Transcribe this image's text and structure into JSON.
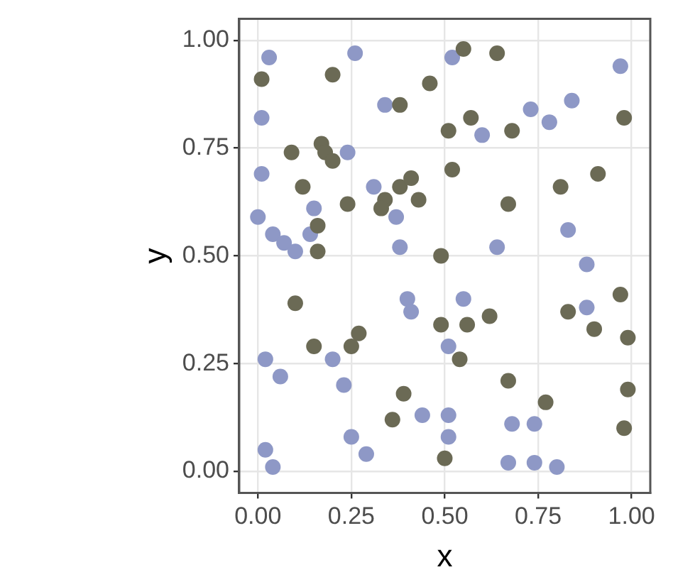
{
  "chart_data": {
    "type": "scatter",
    "xlabel": "x",
    "ylabel": "y",
    "xlim": [
      -0.05,
      1.05
    ],
    "ylim": [
      -0.05,
      1.05
    ],
    "xticks": [
      {
        "value": 0,
        "label": "0.00"
      },
      {
        "value": 0.25,
        "label": "0.25"
      },
      {
        "value": 0.5,
        "label": "0.50"
      },
      {
        "value": 0.75,
        "label": "0.75"
      },
      {
        "value": 1,
        "label": "1.00"
      }
    ],
    "yticks": [
      {
        "value": 0,
        "label": "0.00"
      },
      {
        "value": 0.25,
        "label": "0.25"
      },
      {
        "value": 0.5,
        "label": "0.50"
      },
      {
        "value": 0.75,
        "label": "0.75"
      },
      {
        "value": 1,
        "label": "1.00"
      }
    ],
    "grid": true,
    "legend": false,
    "marker": "circle",
    "series": [
      {
        "color": "#6b6a55",
        "x": [
          0.01,
          0.2,
          0.46,
          0.38,
          0.09,
          0.17,
          0.18,
          0.2,
          0.51,
          0.12,
          0.24,
          0.34,
          0.38,
          0.41,
          0.43,
          0.33,
          0.16,
          0.49,
          0.55,
          0.64,
          0.98,
          0.57,
          0.68,
          0.52,
          0.81,
          0.91,
          0.67,
          0.16,
          0.1,
          0.49,
          0.27,
          0.25,
          0.15,
          0.39,
          0.36,
          0.5,
          0.97,
          0.56,
          0.62,
          0.83,
          0.9,
          0.99,
          0.54,
          0.67,
          0.99,
          0.77,
          0.98
        ],
        "values": [
          0.91,
          0.92,
          0.9,
          0.85,
          0.74,
          0.76,
          0.74,
          0.72,
          0.79,
          0.66,
          0.62,
          0.63,
          0.66,
          0.68,
          0.63,
          0.61,
          0.57,
          0.5,
          0.98,
          0.97,
          0.82,
          0.82,
          0.79,
          0.7,
          0.66,
          0.69,
          0.62,
          0.51,
          0.39,
          0.34,
          0.32,
          0.29,
          0.29,
          0.18,
          0.12,
          0.03,
          0.41,
          0.34,
          0.36,
          0.37,
          0.33,
          0.31,
          0.26,
          0.21,
          0.19,
          0.16,
          0.1
        ]
      },
      {
        "color": "#8e98c6",
        "x": [
          0.03,
          0.26,
          0.34,
          0.52,
          0.01,
          0.24,
          0.01,
          0.31,
          0.37,
          0.0,
          0.04,
          0.07,
          0.1,
          0.15,
          0.14,
          0.38,
          0.97,
          0.84,
          0.6,
          0.73,
          0.78,
          0.83,
          0.64,
          0.88,
          0.4,
          0.41,
          0.51,
          0.2,
          0.02,
          0.06,
          0.23,
          0.44,
          0.51,
          0.51,
          0.25,
          0.29,
          0.02,
          0.04,
          0.55,
          0.68,
          0.74,
          0.67,
          0.74,
          0.8,
          0.88
        ],
        "values": [
          0.96,
          0.97,
          0.85,
          0.96,
          0.82,
          0.74,
          0.69,
          0.66,
          0.59,
          0.59,
          0.55,
          0.53,
          0.51,
          0.61,
          0.55,
          0.52,
          0.94,
          0.86,
          0.78,
          0.84,
          0.81,
          0.56,
          0.52,
          0.48,
          0.4,
          0.37,
          0.29,
          0.26,
          0.26,
          0.22,
          0.2,
          0.13,
          0.13,
          0.08,
          0.08,
          0.04,
          0.05,
          0.01,
          0.4,
          0.11,
          0.11,
          0.02,
          0.02,
          0.01,
          0.38
        ]
      }
    ]
  }
}
